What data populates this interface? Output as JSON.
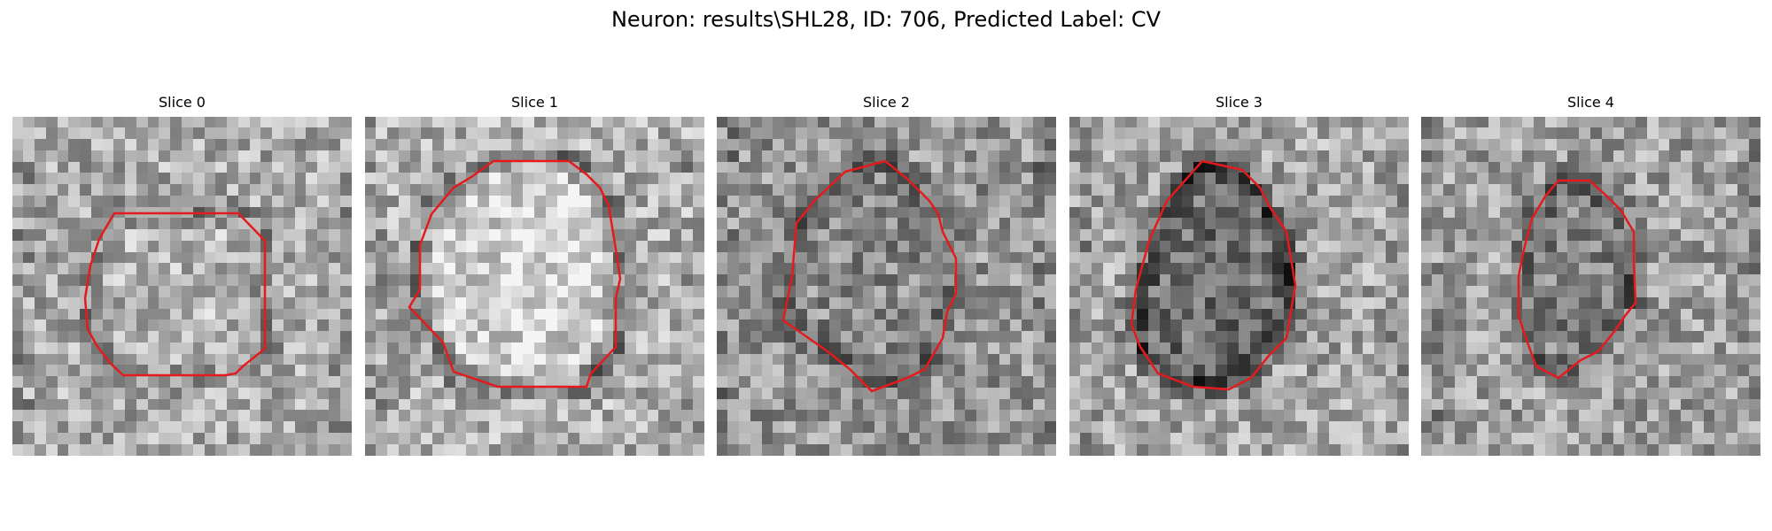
{
  "figure": {
    "title": "Neuron: results\\SHL28, ID: 706, Predicted Label: CV"
  },
  "panels": [
    {
      "title": "Slice 0"
    },
    {
      "title": "Slice 1"
    },
    {
      "title": "Slice 2"
    },
    {
      "title": "Slice 3"
    },
    {
      "title": "Slice 4"
    }
  ],
  "colors": {
    "contour": "#e41a1c",
    "background": "#ffffff"
  }
}
